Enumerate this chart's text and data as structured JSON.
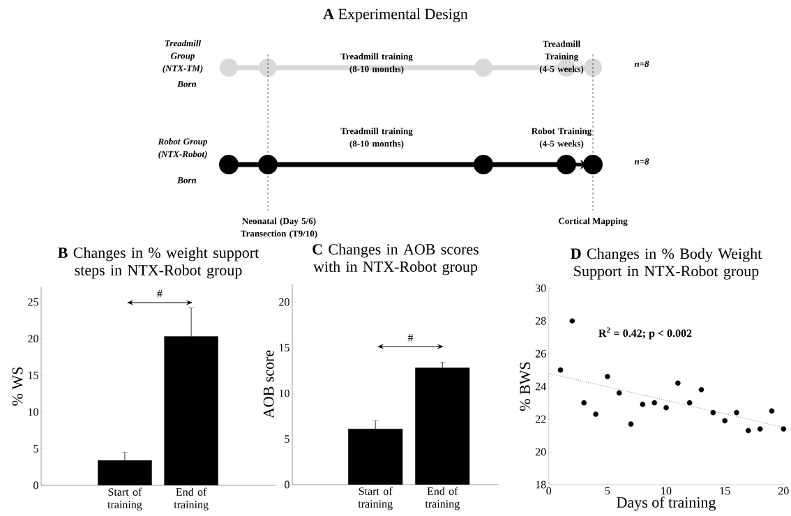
{
  "chart_data": [
    {
      "type": "other",
      "title": "**A** Experimental Design",
      "annotations": [
        "Treadmill Group (NTX-TM)",
        "Born",
        "Treadmill training (8-10 months)",
        "Treadmill Training (4-5 weeks)",
        "n=8",
        "Robot Group (NTX-Robot)",
        "Born",
        "Treadmill training (8-10 months)",
        "Robot Training (4-5 weeks)",
        "n=8",
        "Neonatal (Day 5/6) Transection (T9/10)",
        "Cortical Mapping"
      ]
    },
    {
      "type": "bar",
      "title": "**B** Changes in % weight support steps in NTX-Robot group",
      "ylabel": "% WS",
      "categories": [
        "Start of training",
        "End of training"
      ],
      "values": [
        3.4,
        20.3
      ],
      "errors": [
        [
          3.4,
          4.5
        ],
        [
          20.3,
          24.2
        ]
      ],
      "color": "#000000",
      "ylim": [
        0,
        27
      ],
      "yticks": [
        0,
        5,
        10,
        15,
        20,
        25
      ],
      "annotations": [
        "#"
      ]
    },
    {
      "type": "bar",
      "title": "**C** Changes in AOB scores with in NTX-Robot group",
      "ylabel": "AOB score",
      "categories": [
        "Start of training",
        "End of training"
      ],
      "values": [
        6.1,
        12.8
      ],
      "errors": [
        [
          6.1,
          7.0
        ],
        [
          12.8,
          13.4
        ]
      ],
      "color": "#000000",
      "ylim": [
        0,
        22
      ],
      "yticks": [
        0,
        5,
        10,
        15,
        20
      ],
      "annotations": [
        "#"
      ]
    },
    {
      "type": "scatter",
      "title": "**D** Changes in % Body Weight Support in NTX-Robot group",
      "xlabel": "Days of training",
      "ylabel": "% BWS",
      "xlim": [
        0,
        20
      ],
      "xticks": [
        0,
        5,
        10,
        15,
        20
      ],
      "ylim": [
        18,
        30
      ],
      "yticks": [
        18,
        20,
        22,
        24,
        26,
        28,
        30
      ],
      "annotations": [
        "R$^{2}$ = 0.42; p < 0.002"
      ],
      "series": [
        {
          "x": [
            1,
            2,
            3,
            4,
            5,
            6,
            7,
            8,
            9,
            10,
            11,
            12,
            13,
            14,
            15,
            16,
            17,
            18,
            19,
            20
          ],
          "values": [
            25.0,
            28.0,
            23.0,
            22.3,
            24.6,
            23.6,
            21.7,
            22.9,
            23.0,
            22.7,
            24.2,
            23.0,
            23.8,
            22.4,
            21.9,
            22.4,
            21.3,
            21.4,
            22.5,
            21.4
          ],
          "color": "#000000",
          "marker": "circle"
        },
        {
          "type": "line",
          "x": [
            0,
            20
          ],
          "values": [
            24.8,
            21.5
          ],
          "color": "#666666",
          "line_style": "dotted"
        }
      ]
    }
  ]
}
